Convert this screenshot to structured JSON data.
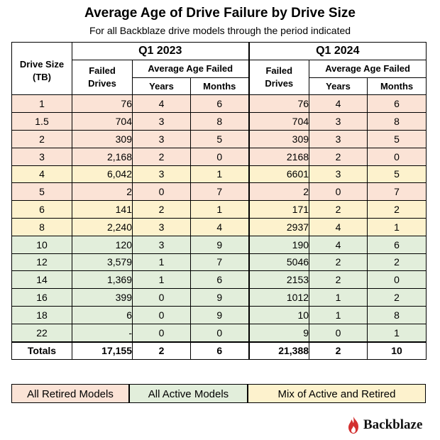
{
  "title": "Average Age of Drive Failure by Drive Size",
  "subtitle": "For all Backblaze drive models through the period indicated",
  "headers": {
    "drive_size": "Drive Size (TB)",
    "q1_2023": "Q1 2023",
    "q1_2024": "Q1 2024",
    "failed_drives": "Failed Drives",
    "avg_age_failed": "Average Age Failed",
    "years": "Years",
    "months": "Months"
  },
  "rows": [
    {
      "size": "1",
      "category": "retired",
      "q23": {
        "failed": "76",
        "years": "4",
        "months": "6"
      },
      "q24": {
        "failed": "76",
        "years": "4",
        "months": "6"
      }
    },
    {
      "size": "1.5",
      "category": "retired",
      "q23": {
        "failed": "704",
        "years": "3",
        "months": "8"
      },
      "q24": {
        "failed": "704",
        "years": "3",
        "months": "8"
      }
    },
    {
      "size": "2",
      "category": "retired",
      "q23": {
        "failed": "309",
        "years": "3",
        "months": "5"
      },
      "q24": {
        "failed": "309",
        "years": "3",
        "months": "5"
      }
    },
    {
      "size": "3",
      "category": "retired",
      "q23": {
        "failed": "2,168",
        "years": "2",
        "months": "0"
      },
      "q24": {
        "failed": "2168",
        "years": "2",
        "months": "0"
      }
    },
    {
      "size": "4",
      "category": "mix",
      "q23": {
        "failed": "6,042",
        "years": "3",
        "months": "1"
      },
      "q24": {
        "failed": "6601",
        "years": "3",
        "months": "5"
      }
    },
    {
      "size": "5",
      "category": "retired",
      "q23": {
        "failed": "2",
        "years": "0",
        "months": "7"
      },
      "q24": {
        "failed": "2",
        "years": "0",
        "months": "7"
      }
    },
    {
      "size": "6",
      "category": "mix",
      "q23": {
        "failed": "141",
        "years": "2",
        "months": "1"
      },
      "q24": {
        "failed": "171",
        "years": "2",
        "months": "2"
      }
    },
    {
      "size": "8",
      "category": "mix",
      "q23": {
        "failed": "2,240",
        "years": "3",
        "months": "4"
      },
      "q24": {
        "failed": "2937",
        "years": "4",
        "months": "1"
      }
    },
    {
      "size": "10",
      "category": "active",
      "q23": {
        "failed": "120",
        "years": "3",
        "months": "9"
      },
      "q24": {
        "failed": "190",
        "years": "4",
        "months": "6"
      }
    },
    {
      "size": "12",
      "category": "active",
      "q23": {
        "failed": "3,579",
        "years": "1",
        "months": "7"
      },
      "q24": {
        "failed": "5046",
        "years": "2",
        "months": "2"
      }
    },
    {
      "size": "14",
      "category": "active",
      "q23": {
        "failed": "1,369",
        "years": "1",
        "months": "6"
      },
      "q24": {
        "failed": "2153",
        "years": "2",
        "months": "0"
      }
    },
    {
      "size": "16",
      "category": "active",
      "q23": {
        "failed": "399",
        "years": "0",
        "months": "9"
      },
      "q24": {
        "failed": "1012",
        "years": "1",
        "months": "2"
      }
    },
    {
      "size": "18",
      "category": "active",
      "q23": {
        "failed": "6",
        "years": "0",
        "months": "9"
      },
      "q24": {
        "failed": "10",
        "years": "1",
        "months": "8"
      }
    },
    {
      "size": "22",
      "category": "active",
      "q23": {
        "failed": "-",
        "years": "0",
        "months": "0"
      },
      "q24": {
        "failed": "9",
        "years": "0",
        "months": "1"
      }
    }
  ],
  "totals": {
    "label": "Totals",
    "q23": {
      "failed": "17,155",
      "years": "2",
      "months": "6"
    },
    "q24": {
      "failed": "21,388",
      "years": "2",
      "months": "10"
    }
  },
  "legend": {
    "retired": "All Retired Models",
    "active": "All Active Models",
    "mix": "Mix of Active and Retired"
  },
  "colors": {
    "retired": "#fbe3d6",
    "active": "#e2eedb",
    "mix": "#fdf2cd",
    "logo_red": "#d32f2f"
  },
  "logo": {
    "text": "Backblaze",
    "icon": "flame-icon"
  }
}
